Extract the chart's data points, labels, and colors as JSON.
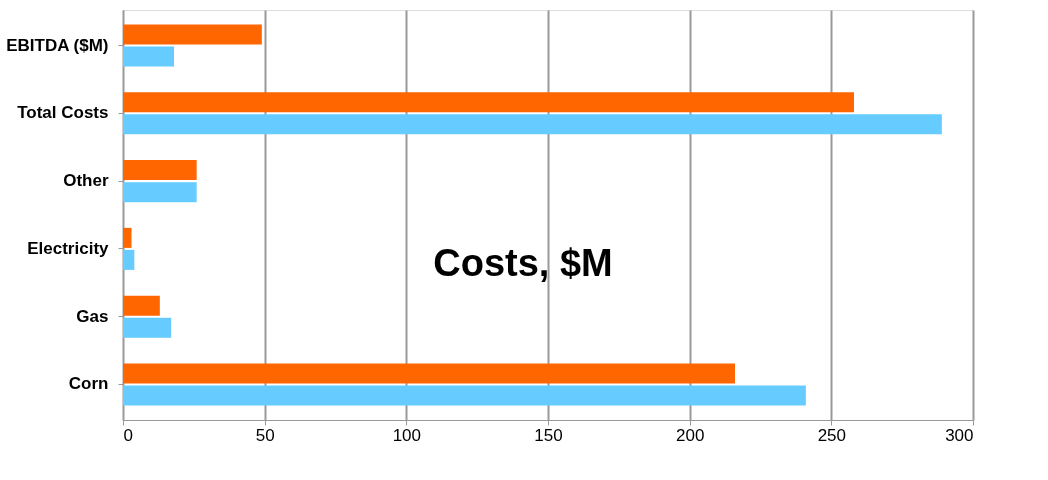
{
  "chart_data": {
    "type": "bar",
    "orientation": "horizontal",
    "title": "Costs, $M",
    "categories": [
      "EBITDA ($M)",
      "Total Costs",
      "Other",
      "Electricity",
      "Gas",
      "Corn"
    ],
    "series": [
      {
        "color": "#ff6600",
        "values": [
          49,
          258,
          26,
          3,
          13,
          216
        ]
      },
      {
        "color": "#66ccff",
        "values": [
          18,
          289,
          26,
          4,
          17,
          241
        ]
      }
    ],
    "xlim": [
      0,
      300
    ],
    "xticks": [
      0,
      50,
      100,
      150,
      200,
      250,
      300
    ],
    "grid": "x",
    "legend": false
  }
}
